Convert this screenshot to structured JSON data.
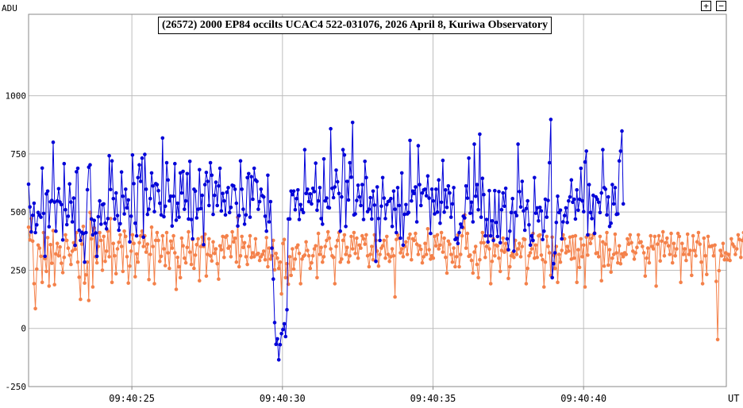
{
  "controls": {
    "zoom_in": "+",
    "zoom_out": "−"
  },
  "colors": {
    "blue": "#0000d8",
    "orange": "#f4814a",
    "grid": "#bdbdbd",
    "axis": "#888888"
  },
  "chart_data": {
    "type": "line",
    "title": "(26572) 2000 EP84 occilts UCAC4 522-031076, 2026 April 8, Kuriwa Observatory",
    "ylabel": "ADU",
    "xlabel": "UT",
    "ylim": [
      -250,
      1350
    ],
    "xlim": [
      "09:40:21.57",
      "09:40:44.74"
    ],
    "y_ticks": [
      -250,
      0,
      250,
      500,
      750,
      1000
    ],
    "x_ticks": [
      "09:40:25",
      "09:40:30",
      "09:40:35",
      "09:40:40"
    ],
    "x_start": "09:40:21.57",
    "x_step_seconds": 0.0454,
    "grid": true,
    "legend": "none",
    "series": [
      {
        "color": "#0000d8",
        "values": [
          620,
          522,
          415,
          486,
          538,
          412,
          445,
          498,
          487,
          478,
          689,
          494,
          310,
          578,
          590,
          437,
          544,
          550,
          800,
          543,
          418,
          548,
          600,
          543,
          532,
          380,
          708,
          510,
          446,
          482,
          621,
          543,
          458,
          560,
          357,
          673,
          688,
          422,
          378,
          413,
          407,
          285,
          412,
          596,
          693,
          703,
          470,
          402,
          464,
          410,
          310,
          480,
          548,
          448,
          532,
          535,
          452,
          428,
          472,
          742,
          597,
          720,
          558,
          470,
          582,
          485,
          422,
          450,
          672,
          568,
          492,
          598,
          518,
          552,
          372,
          482,
          745,
          622,
          452,
          398,
          648,
          703,
          632,
          732,
          392,
          748,
          598,
          490,
          512,
          558,
          668,
          612,
          502,
          622,
          618,
          592,
          538,
          488,
          818,
          480,
          525,
          712,
          638,
          548,
          568,
          440,
          568,
          708,
          465,
          538,
          478,
          668,
          582,
          675,
          512,
          548,
          665,
          470,
          718,
          468,
          385,
          598,
          590,
          475,
          512,
          682,
          515,
          572,
          360,
          618,
          670,
          632,
          528,
          712,
          658,
          490,
          572,
          628,
          528,
          612,
          688,
          505,
          580,
          548,
          488,
          585,
          605,
          498,
          520,
          615,
          612,
          598,
          538,
          440,
          485,
          720,
          598,
          512,
          448,
          488,
          648,
          665,
          478,
          652,
          555,
          688,
          638,
          632,
          512,
          545,
          598,
          570,
          565,
          482,
          418,
          658,
          458,
          545,
          345,
          212,
          25,
          -68,
          -45,
          -135,
          -70,
          -22,
          -5,
          20,
          -35,
          80,
          470,
          470,
          590,
          575,
          590,
          510,
          558,
          595,
          468,
          532,
          510,
          498,
          768,
          580,
          598,
          545,
          578,
          535,
          602,
          588,
          710,
          508,
          548,
          605,
          472,
          448,
          728,
          548,
          560,
          520,
          518,
          858,
          602,
          562,
          608,
          680,
          630,
          580,
          418,
          565,
          768,
          745,
          438,
          632,
          552,
          712,
          650,
          885,
          488,
          492,
          550,
          615,
          565,
          528,
          618,
          468,
          718,
          648,
          502,
          512,
          562,
          470,
          590,
          530,
          288,
          608,
          472,
          378,
          525,
          648,
          560,
          472,
          532,
          545,
          548,
          558,
          438,
          590,
          512,
          412,
          605,
          528,
          388,
          668,
          358,
          490,
          532,
          492,
          498,
          808,
          548,
          590,
          580,
          608,
          458,
          785,
          618,
          528,
          582,
          595,
          598,
          570,
          655,
          560,
          408,
          598,
          548,
          492,
          598,
          500,
          638,
          452,
          542,
          722,
          500,
          595,
          520,
          612,
          582,
          478,
          535,
          605,
          382,
          388,
          365,
          412,
          448,
          435,
          482,
          475,
          612,
          560,
          732,
          495,
          542,
          458,
          792,
          568,
          618,
          510,
          835,
          478,
          645,
          575,
          398,
          468,
          372,
          592,
          398,
          462,
          378,
          592,
          455,
          395,
          588,
          368,
          510,
          582,
          525,
          602,
          385,
          338,
          418,
          498,
          558,
          332,
          498,
          485,
          792,
          588,
          522,
          632,
          505,
          422,
          515,
          548,
          445,
          358,
          398,
          378,
          648,
          495,
          518,
          462,
          520,
          505,
          382,
          418,
          555,
          478,
          550,
          712,
          898,
          218,
          278,
          325,
          455,
          568,
          498,
          508,
          385,
          458,
          485,
          518,
          455,
          548,
          565,
          638,
          542,
          555,
          470,
          595,
          508,
          555,
          688,
          548,
          502,
          715,
          762,
          402,
          618,
          498,
          472,
          572,
          408,
          565,
          555,
          542,
          498,
          582,
          768,
          605,
          598,
          488,
          565,
          438,
          452,
          618,
          535,
          605,
          490,
          492,
          720,
          762,
          848,
          535
        ]
      },
      {
        "color": "#f4814a",
        "values": [
          435,
          380,
          472,
          375,
          192,
          85,
          255,
          358,
          345,
          310,
          198,
          412,
          300,
          245,
          390,
          182,
          360,
          280,
          420,
          188,
          320,
          365,
          312,
          350,
          280,
          240,
          305,
          402,
          378,
          345,
          315,
          275,
          332,
          368,
          340,
          412,
          285,
          220,
          125,
          362,
          438,
          195,
          230,
          285,
          120,
          498,
          385,
          178,
          432,
          308,
          282,
          352,
          412,
          378,
          250,
          395,
          288,
          332,
          418,
          308,
          472,
          198,
          365,
          312,
          235,
          342,
          370,
          402,
          352,
          245,
          418,
          395,
          308,
          195,
          268,
          332,
          402,
          365,
          222,
          320,
          285,
          368,
          398,
          418,
          352,
          398,
          328,
          362,
          210,
          318,
          435,
          352,
          192,
          378,
          412,
          378,
          288,
          310,
          398,
          342,
          270,
          412,
          325,
          258,
          375,
          345,
          398,
          325,
          168,
          305,
          265,
          218,
          388,
          355,
          302,
          282,
          348,
          415,
          328,
          275,
          382,
          258,
          315,
          360,
          385,
          205,
          352,
          392,
          352,
          405,
          225,
          318,
          385,
          312,
          290,
          372,
          322,
          342,
          278,
          212,
          355,
          338,
          395,
          305,
          392,
          398,
          345,
          352,
          308,
          415,
          372,
          388,
          285,
          478,
          265,
          312,
          395,
          348,
          368,
          308,
          275,
          352,
          398,
          305,
          325,
          308,
          385,
          318,
          322,
          292,
          308,
          318,
          332,
          295,
          390,
          265,
          345,
          298,
          312,
          378,
          252,
          322,
          302,
          258,
          285,
          148,
          365,
          382,
          218,
          278,
          190,
          308,
          228,
          342,
          255,
          298,
          348,
          358,
          322,
          192,
          298,
          310,
          315,
          372,
          335,
          312,
          258,
          282,
          312,
          342,
          355,
          218,
          408,
          318,
          348,
          285,
          308,
          352,
          378,
          415,
          388,
          342,
          312,
          305,
          192,
          352,
          378,
          412,
          285,
          298,
          378,
          402,
          318,
          348,
          285,
          312,
          395,
          342,
          412,
          322,
          388,
          302,
          358,
          345,
          398,
          385,
          362,
          402,
          312,
          265,
          318,
          352,
          295,
          402,
          378,
          332,
          268,
          318,
          345,
          355,
          378,
          302,
          395,
          318,
          288,
          308,
          342,
          312,
          135,
          382,
          402,
          388,
          325,
          342,
          308,
          352,
          372,
          318,
          388,
          405,
          295,
          385,
          378,
          408,
          362,
          318,
          355,
          340,
          282,
          308,
          365,
          318,
          428,
          338,
          298,
          312,
          302,
          395,
          355,
          402,
          342,
          358,
          412,
          328,
          388,
          305,
          238,
          375,
          362,
          318,
          285,
          345,
          265,
          308,
          402,
          265,
          318,
          398,
          432,
          488,
          345,
          408,
          310,
          315,
          292,
          238,
          328,
          352,
          275,
          218,
          295,
          368,
          412,
          368,
          305,
          352,
          398,
          342,
          192,
          288,
          385,
          312,
          358,
          355,
          302,
          245,
          335,
          388,
          328,
          365,
          338,
          215,
          265,
          312,
          325,
          305,
          378,
          318,
          342,
          365,
          308,
          352,
          385,
          382,
          192,
          258,
          312,
          325,
          342,
          408,
          302,
          358,
          305,
          398,
          402,
          315,
          295,
          178,
          285,
          395,
          352,
          325,
          228,
          392,
          315,
          258,
          352,
          198,
          318,
          285,
          335,
          402,
          385,
          325,
          352,
          332,
          392,
          298,
          395,
          302,
          398,
          198,
          338,
          262,
          385,
          308,
          358,
          178,
          392,
          315,
          402,
          365,
          388,
          402,
          410,
          322,
          325,
          308,
          395,
          205,
          372,
          268,
          362,
          412,
          272,
          338,
          242,
          302,
          318,
          405,
          325,
          282,
          355,
          278,
          320,
          308,
          325,
          318,
          385,
          362,
          402,
          368,
          332,
          298,
          325,
          348,
          402,
          368,
          372,
          352,
          325,
          225,
          302,
          345,
          282,
          398,
          352,
          342,
          395,
          182,
          362,
          398,
          290,
          375,
          415,
          312,
          368,
          388,
          355,
          318,
          408,
          282,
          365,
          312,
          342,
          408,
          395,
          198,
          365,
          318,
          342,
          292,
          405,
          318,
          335,
          228,
          398,
          335,
          312,
          372,
          412,
          362,
          285,
          192,
          388,
          312,
          232,
          395,
          352,
          352,
          355,
          312,
          358,
          202,
          -48,
          248,
          335,
          312,
          365,
          295,
          325,
          295,
          318,
          292,
          385,
          362,
          352,
          318,
          342,
          402,
          382,
          305,
          378,
          412,
          428,
          88,
          230
        ]
      }
    ]
  }
}
